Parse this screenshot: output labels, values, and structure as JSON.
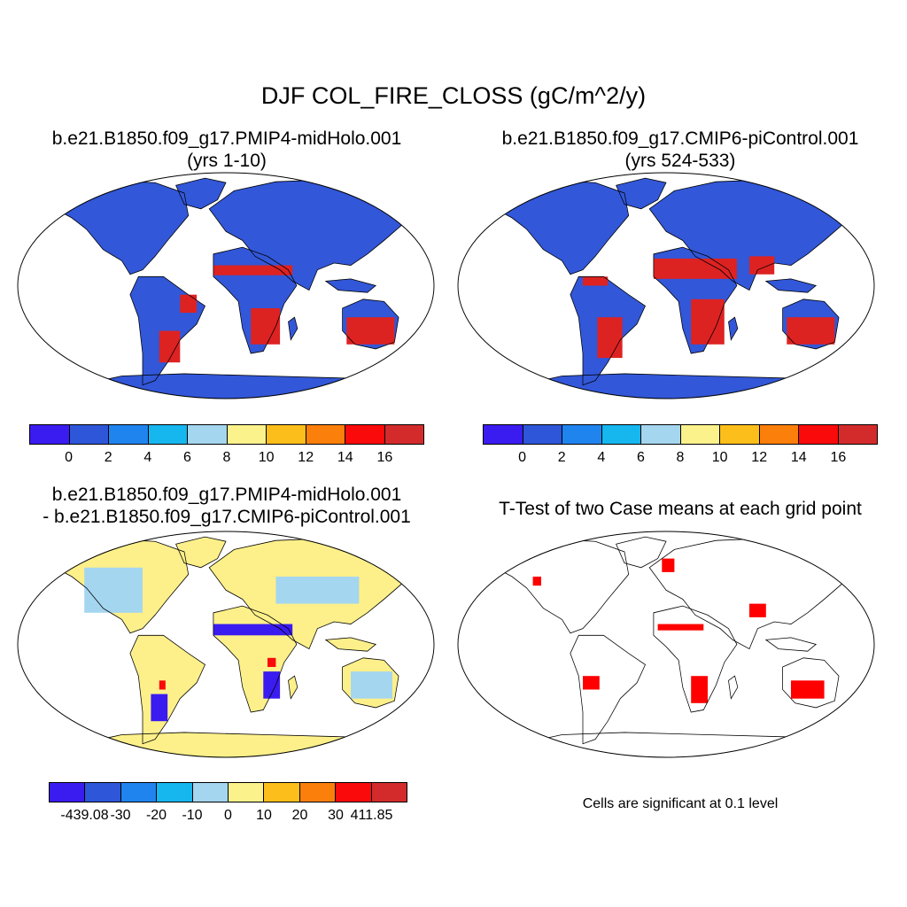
{
  "figure": {
    "title": "DJF COL_FIRE_CLOSS (gC/m^2/y)"
  },
  "panels": [
    {
      "id": "p1",
      "title_line1": "b.e21.B1850.f09_g17.PMIP4-midHolo.001",
      "title_line2": "(yrs 1-10)",
      "ocean_color": "#ffffff",
      "land_color": "#3257d8",
      "hotspot_color": "#dd2222"
    },
    {
      "id": "p2",
      "title_line1": "b.e21.B1850.f09_g17.CMIP6-piControl.001",
      "title_line2": "(yrs 524-533)",
      "ocean_color": "#ffffff",
      "land_color": "#3257d8",
      "hotspot_color": "#dd2222"
    },
    {
      "id": "p3",
      "title_line1": "b.e21.B1850.f09_g17.PMIP4-midHolo.001",
      "title_line2": "- b.e21.B1850.f09_g17.CMIP6-piControl.001",
      "ocean_color": "#ffffff",
      "land_color": "#fdf08a",
      "hotspot_color": "#3a1cf0"
    },
    {
      "id": "p4",
      "title_line1": "T-Test of two Case means at each grid point",
      "ocean_color": "#ffffff",
      "land_color": "#ffffff",
      "hotspot_color": "#ff0000"
    }
  ],
  "colorbars": {
    "absolute": {
      "colors": [
        "#3b1cf0",
        "#2e56d9",
        "#2084ee",
        "#16b6ee",
        "#a5d6ef",
        "#fbf28c",
        "#fbbe1a",
        "#fb7f0b",
        "#fa0a0a",
        "#d32b2b"
      ],
      "labels": [
        "0",
        "2",
        "4",
        "6",
        "8",
        "10",
        "12",
        "14",
        "16"
      ]
    },
    "difference": {
      "colors": [
        "#3b1cf0",
        "#2e56d9",
        "#2084ee",
        "#16b6ee",
        "#a5d6ef",
        "#fbf28c",
        "#fbbe1a",
        "#fb7f0b",
        "#fa0a0a",
        "#d32b2b"
      ],
      "labels": [
        "-439.08",
        "-30",
        "-20",
        "-10",
        "0",
        "10",
        "20",
        "30",
        "411.85"
      ]
    }
  },
  "significance_note": "Cells are significant at 0.1 level"
}
